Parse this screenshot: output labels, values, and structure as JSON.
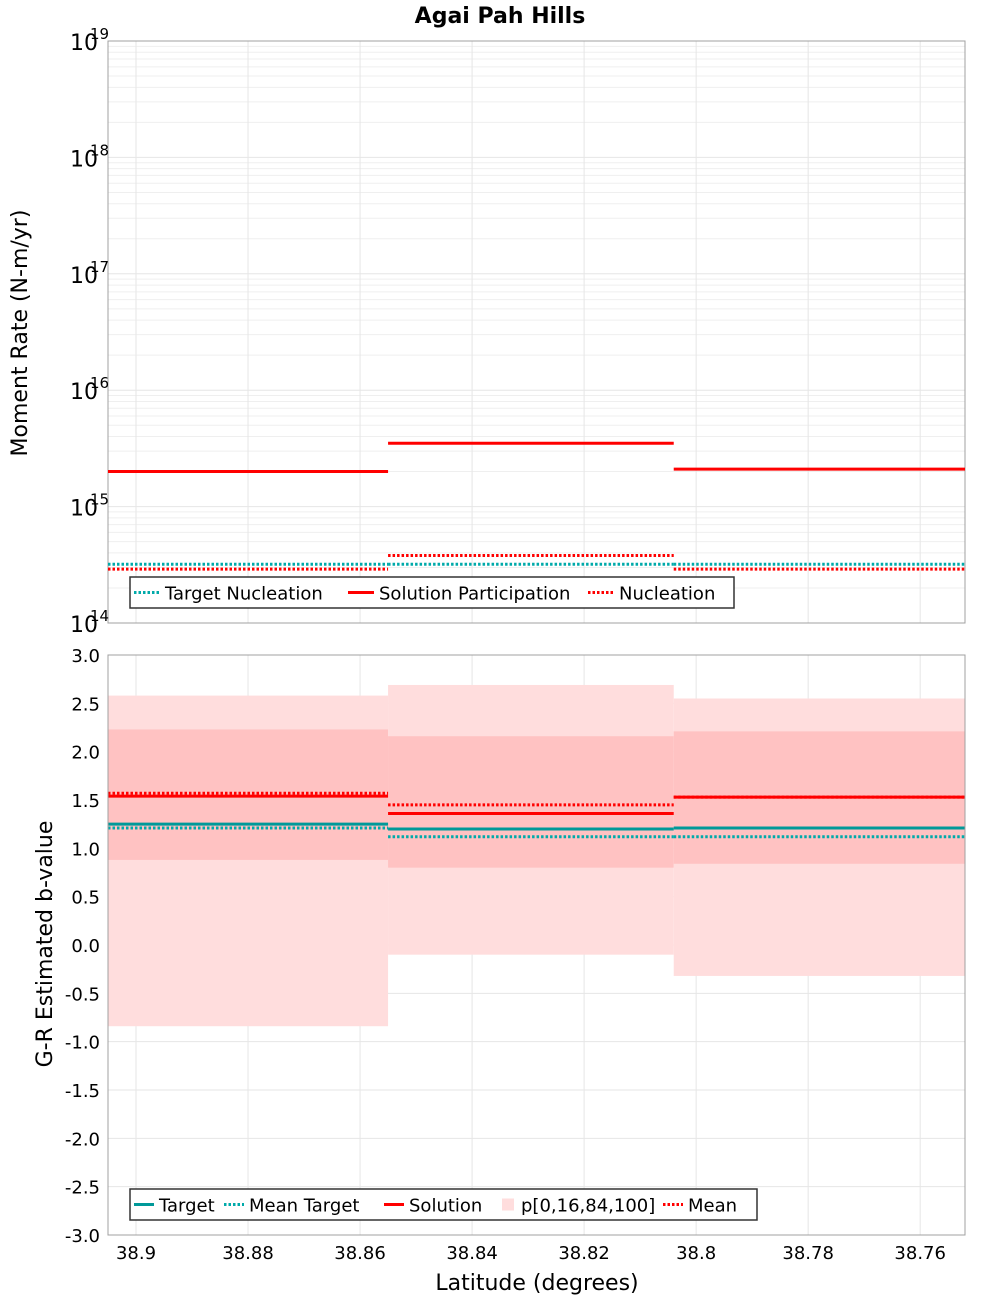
{
  "title": "Agai Pah Hills",
  "colors": {
    "solution": "#ff0000",
    "target": "#009999",
    "target_nucleation": "#00aaaa",
    "band_outer": "#ffdddd",
    "band_inner": "#ffc2c2",
    "grid": "#e6e6e6",
    "frame": "#a0a0a0"
  },
  "chart_data": [
    {
      "type": "line",
      "step": true,
      "ylabel": "Moment Rate (N-m/yr)",
      "xlabel": "",
      "yscale": "log",
      "ylim": [
        100000000000000.0,
        1e+19
      ],
      "xlim": [
        38.905,
        38.752
      ],
      "x_reversed": true,
      "grid": true,
      "bins": [
        {
          "x_start": 38.905,
          "x_end": 38.855
        },
        {
          "x_start": 38.855,
          "x_end": 38.804
        },
        {
          "x_start": 38.804,
          "x_end": 38.752
        }
      ],
      "y_ticks": [
        {
          "base": "10",
          "exp": "19",
          "value": 1e+19
        },
        {
          "base": "10",
          "exp": "18",
          "value": 1e+18
        },
        {
          "base": "10",
          "exp": "17",
          "value": 1e+17
        },
        {
          "base": "10",
          "exp": "16",
          "value": 1e+16
        },
        {
          "base": "10",
          "exp": "15",
          "value": 1000000000000000.0
        },
        {
          "base": "10",
          "exp": "14",
          "value": 100000000000000.0
        }
      ],
      "series": [
        {
          "name": "Target Nucleation",
          "style": "dotted",
          "color": "#00aaaa",
          "values": [
            320000000000000.0,
            320000000000000.0,
            320000000000000.0
          ]
        },
        {
          "name": "Solution Participation",
          "style": "solid",
          "color": "#ff0000",
          "values": [
            2000000000000000.0,
            3500000000000000.0,
            2100000000000000.0
          ]
        },
        {
          "name": "Nucleation",
          "style": "dotted",
          "color": "#ff0000",
          "values": [
            290000000000000.0,
            380000000000000.0,
            290000000000000.0
          ]
        }
      ],
      "legend": "bottom-left"
    },
    {
      "type": "line",
      "step": true,
      "ylabel": "G-R Estimated b-value",
      "xlabel": "Latitude (degrees)",
      "yscale": "linear",
      "ylim": [
        -3.0,
        3.0
      ],
      "xlim": [
        38.905,
        38.752
      ],
      "x_reversed": true,
      "grid": true,
      "bins": [
        {
          "x_start": 38.905,
          "x_end": 38.855
        },
        {
          "x_start": 38.855,
          "x_end": 38.804
        },
        {
          "x_start": 38.804,
          "x_end": 38.752
        }
      ],
      "y_ticks": [
        "3.0",
        "2.5",
        "2.0",
        "1.5",
        "1.0",
        "0.5",
        "0.0",
        "-0.5",
        "-1.0",
        "-1.5",
        "-2.0",
        "-2.5",
        "-3.0"
      ],
      "x_ticks": [
        "38.9",
        "38.88",
        "38.86",
        "38.84",
        "38.82",
        "38.8",
        "38.78",
        "38.76"
      ],
      "bands": {
        "p0": [
          -0.84,
          -0.1,
          -0.32
        ],
        "p16": [
          0.88,
          0.8,
          0.84
        ],
        "p84": [
          2.23,
          2.16,
          2.21
        ],
        "p100": [
          2.58,
          2.69,
          2.55
        ]
      },
      "series": [
        {
          "name": "Target",
          "style": "solid",
          "color": "#009999",
          "values": [
            1.25,
            1.2,
            1.21
          ]
        },
        {
          "name": "Mean Target",
          "style": "dotted",
          "color": "#00aaaa",
          "values": [
            1.21,
            1.12,
            1.12
          ]
        },
        {
          "name": "Solution",
          "style": "solid",
          "color": "#ff0000",
          "values": [
            1.54,
            1.36,
            1.53
          ]
        },
        {
          "name": "p[0,16,84,100]",
          "style": "band",
          "color": "#ffc2c2"
        },
        {
          "name": "Mean",
          "style": "dotted",
          "color": "#ff0000",
          "values": [
            1.57,
            1.45,
            1.53
          ]
        }
      ],
      "legend": "bottom-left"
    }
  ]
}
